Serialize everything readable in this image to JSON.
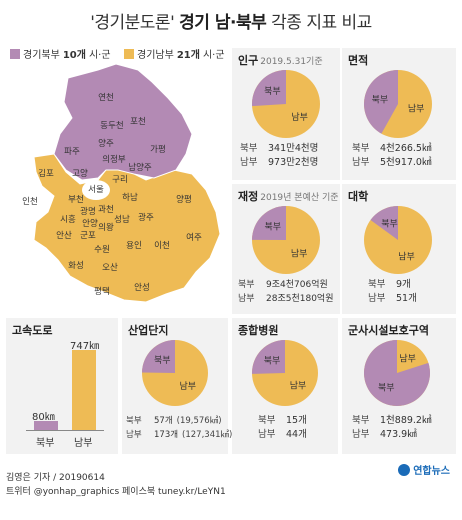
{
  "title": {
    "part1": "'경기분도론'",
    "part2": "경기 남·북부",
    "part3": "각종 지표 비교"
  },
  "colors": {
    "north": "#b38ab4",
    "south": "#eebb55",
    "panel": "#f2f2f2"
  },
  "legend": {
    "north_label": "경기북부",
    "north_count": "10개",
    "north_suffix": "시·군",
    "south_label": "경기남부",
    "south_count": "21개",
    "south_suffix": "시·군"
  },
  "map_labels": {
    "north": [
      "연천",
      "포천",
      "동두천",
      "양주",
      "파주",
      "가평",
      "의정부",
      "고양",
      "남양주",
      "구리"
    ],
    "south": [
      "김포",
      "부천",
      "광명",
      "과천",
      "하남",
      "양평",
      "시흥",
      "안양",
      "성남",
      "광주",
      "여주",
      "안산",
      "군포",
      "의왕",
      "수원",
      "용인",
      "이천",
      "화성",
      "오산",
      "평택",
      "안성"
    ],
    "other": [
      "서울",
      "인천"
    ]
  },
  "panels": {
    "population": {
      "title": "인구",
      "note": "2019.5.31기준",
      "north_value": "341만4천명",
      "south_value": "973만2천명"
    },
    "area": {
      "title": "면적",
      "north_value": "4천266.5㎢",
      "south_value": "5천917.0㎢"
    },
    "budget": {
      "title": "재정",
      "note": "2019년 본예산 기준",
      "north_value": "9조4천706억원",
      "south_value": "28조5천180억원"
    },
    "university": {
      "title": "대학",
      "north_value": "9개",
      "south_value": "51개"
    },
    "highway": {
      "title": "고속도로",
      "north_value": "80㎞",
      "south_value": "747㎞"
    },
    "industrial": {
      "title": "산업단지",
      "north_value": "57개",
      "north_sub": "(19,576㎢)",
      "south_value": "173개",
      "south_sub": "(127,341㎢)"
    },
    "hospital": {
      "title": "종합병원",
      "north_value": "15개",
      "south_value": "44개"
    },
    "military": {
      "title": "군사시설보호구역",
      "north_value": "1천889.2㎢",
      "south_value": "473.9㎢"
    }
  },
  "labels": {
    "north": "북부",
    "south": "남부"
  },
  "chart_data": [
    {
      "type": "pie",
      "title": "인구",
      "categories": [
        "북부",
        "남부"
      ],
      "values": [
        341.4,
        973.2
      ]
    },
    {
      "type": "pie",
      "title": "면적",
      "categories": [
        "북부",
        "남부"
      ],
      "values": [
        4266.5,
        5917.0
      ]
    },
    {
      "type": "pie",
      "title": "재정",
      "categories": [
        "북부",
        "남부"
      ],
      "values": [
        94706,
        285180
      ]
    },
    {
      "type": "pie",
      "title": "대학",
      "categories": [
        "북부",
        "남부"
      ],
      "values": [
        9,
        51
      ]
    },
    {
      "type": "bar",
      "title": "고속도로",
      "categories": [
        "북부",
        "남부"
      ],
      "values": [
        80,
        747
      ]
    },
    {
      "type": "pie",
      "title": "산업단지",
      "categories": [
        "북부",
        "남부"
      ],
      "values": [
        57,
        173
      ]
    },
    {
      "type": "pie",
      "title": "종합병원",
      "categories": [
        "북부",
        "남부"
      ],
      "values": [
        15,
        44
      ]
    },
    {
      "type": "pie",
      "title": "군사시설보호구역",
      "categories": [
        "북부",
        "남부"
      ],
      "values": [
        1889.2,
        473.9
      ]
    }
  ],
  "footer": {
    "credit": "김영은 기자 / 20190614",
    "sns": "트위터 @yonhap_graphics  페이스북 tuney.kr/LeYN1"
  },
  "logo": "연합뉴스"
}
